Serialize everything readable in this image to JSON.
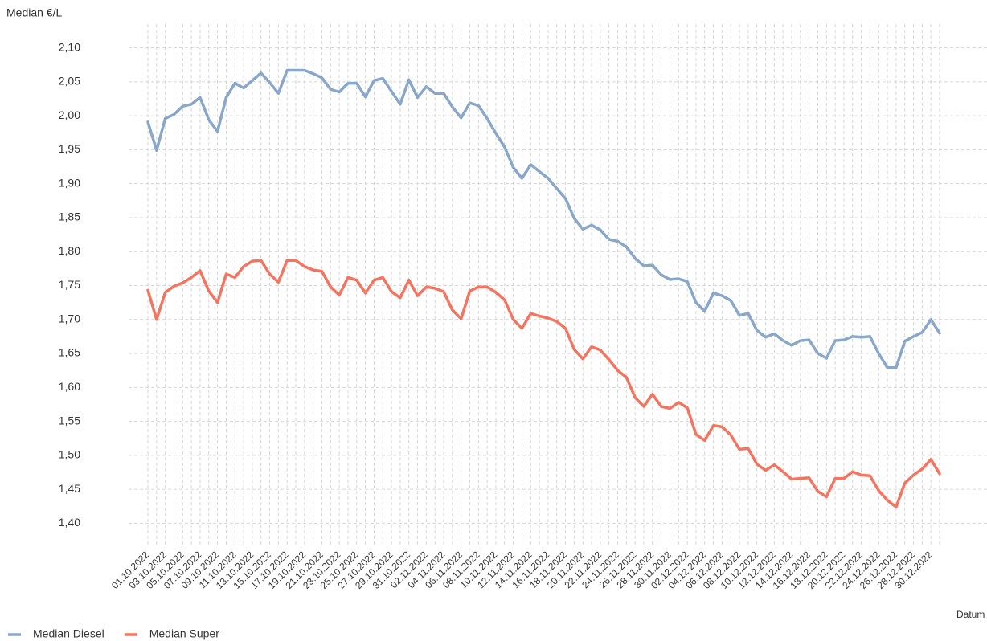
{
  "chart_data": {
    "type": "line",
    "y_label": "Median €/L",
    "x_label": "Datum",
    "categories": [
      "01.10.2022",
      null,
      "03.10.2022",
      null,
      "05.10.2022",
      null,
      "07.10.2022",
      null,
      "09.10.2022",
      null,
      "11.10.2022",
      null,
      "13.10.2022",
      null,
      "15.10.2022",
      null,
      "17.10.2022",
      null,
      "19.10.2022",
      null,
      "21.10.2022",
      null,
      "23.10.2022",
      null,
      "25.10.2022",
      null,
      "27.10.2022",
      null,
      "29.10.2022",
      null,
      "31.10.2022",
      null,
      "02.11.2022",
      null,
      "04.11.2022",
      null,
      "06.11.2022",
      null,
      "08.11.2022",
      null,
      "10.11.2022",
      null,
      "12.11.2022",
      null,
      "14.11.2022",
      null,
      "16.11.2022",
      null,
      "18.11.2022",
      null,
      "20.11.2022",
      null,
      "22.11.2022",
      null,
      "24.11.2022",
      null,
      "26.11.2022",
      null,
      "28.11.2022",
      null,
      "30.11.2022",
      null,
      "02.12.2022",
      null,
      "04.12.2022",
      null,
      "06.12.2022",
      null,
      "08.12.2022",
      null,
      "10.12.2022",
      null,
      "12.12.2022",
      null,
      "14.12.2022",
      null,
      "16.12.2022",
      null,
      "18.12.2022",
      null,
      "20.12.2022",
      null,
      "22.12.2022",
      null,
      "24.12.2022",
      null,
      "26.12.2022",
      null,
      "28.12.2022",
      null,
      "30.12.2022",
      null
    ],
    "series": [
      {
        "name": "Median Diesel",
        "color": "#89a7c9",
        "values": [
          1.991,
          1.949,
          1.996,
          2.002,
          2.014,
          2.017,
          2.027,
          1.994,
          1.977,
          2.027,
          2.048,
          2.041,
          2.052,
          2.063,
          2.049,
          2.033,
          2.067,
          2.067,
          2.067,
          2.062,
          2.056,
          2.039,
          2.035,
          2.048,
          2.048,
          2.028,
          2.052,
          2.055,
          2.036,
          2.017,
          2.053,
          2.027,
          2.043,
          2.033,
          2.033,
          2.013,
          1.997,
          2.019,
          2.015,
          1.996,
          1.974,
          1.954,
          1.924,
          1.908,
          1.928,
          1.918,
          1.908,
          1.893,
          1.878,
          1.849,
          1.833,
          1.839,
          1.832,
          1.818,
          1.815,
          1.807,
          1.79,
          1.779,
          1.78,
          1.766,
          1.759,
          1.76,
          1.756,
          1.725,
          1.712,
          1.739,
          1.735,
          1.728,
          1.706,
          1.709,
          1.684,
          1.674,
          1.679,
          1.669,
          1.662,
          1.669,
          1.67,
          1.65,
          1.643,
          1.669,
          1.67,
          1.675,
          1.674,
          1.675,
          1.65,
          1.629,
          1.629,
          1.668,
          1.675,
          1.681,
          1.7,
          1.68
        ]
      },
      {
        "name": "Median Super",
        "color": "#f47460",
        "values": [
          1.743,
          1.7,
          1.74,
          1.749,
          1.754,
          1.762,
          1.772,
          1.742,
          1.725,
          1.767,
          1.762,
          1.778,
          1.786,
          1.787,
          1.767,
          1.755,
          1.787,
          1.787,
          1.778,
          1.773,
          1.771,
          1.748,
          1.736,
          1.762,
          1.758,
          1.739,
          1.758,
          1.762,
          1.741,
          1.732,
          1.758,
          1.735,
          1.748,
          1.746,
          1.741,
          1.714,
          1.701,
          1.742,
          1.748,
          1.748,
          1.74,
          1.729,
          1.7,
          1.687,
          1.709,
          1.705,
          1.702,
          1.697,
          1.687,
          1.656,
          1.642,
          1.66,
          1.655,
          1.641,
          1.625,
          1.615,
          1.585,
          1.572,
          1.59,
          1.572,
          1.569,
          1.578,
          1.57,
          1.531,
          1.522,
          1.544,
          1.542,
          1.53,
          1.509,
          1.51,
          1.487,
          1.478,
          1.486,
          1.476,
          1.465,
          1.466,
          1.467,
          1.447,
          1.439,
          1.466,
          1.466,
          1.476,
          1.471,
          1.47,
          1.448,
          1.434,
          1.424,
          1.459,
          1.471,
          1.48,
          1.494,
          1.473
        ]
      }
    ],
    "ylim": [
      1.365,
      2.135
    ],
    "yticks": [
      {
        "value": 1.4,
        "label": "1,40"
      },
      {
        "value": 1.45,
        "label": "1,45"
      },
      {
        "value": 1.5,
        "label": "1,50"
      },
      {
        "value": 1.55,
        "label": "1,55"
      },
      {
        "value": 1.6,
        "label": "1,60"
      },
      {
        "value": 1.65,
        "label": "1,65"
      },
      {
        "value": 1.7,
        "label": "1,70"
      },
      {
        "value": 1.75,
        "label": "1,75"
      },
      {
        "value": 1.8,
        "label": "1,80"
      },
      {
        "value": 1.85,
        "label": "1,85"
      },
      {
        "value": 1.9,
        "label": "1,90"
      },
      {
        "value": 1.95,
        "label": "1,95"
      },
      {
        "value": 2.0,
        "label": "2,00"
      },
      {
        "value": 2.05,
        "label": "2,05"
      },
      {
        "value": 2.1,
        "label": "2,10"
      }
    ],
    "grid": true,
    "legend": "bottom-left"
  }
}
